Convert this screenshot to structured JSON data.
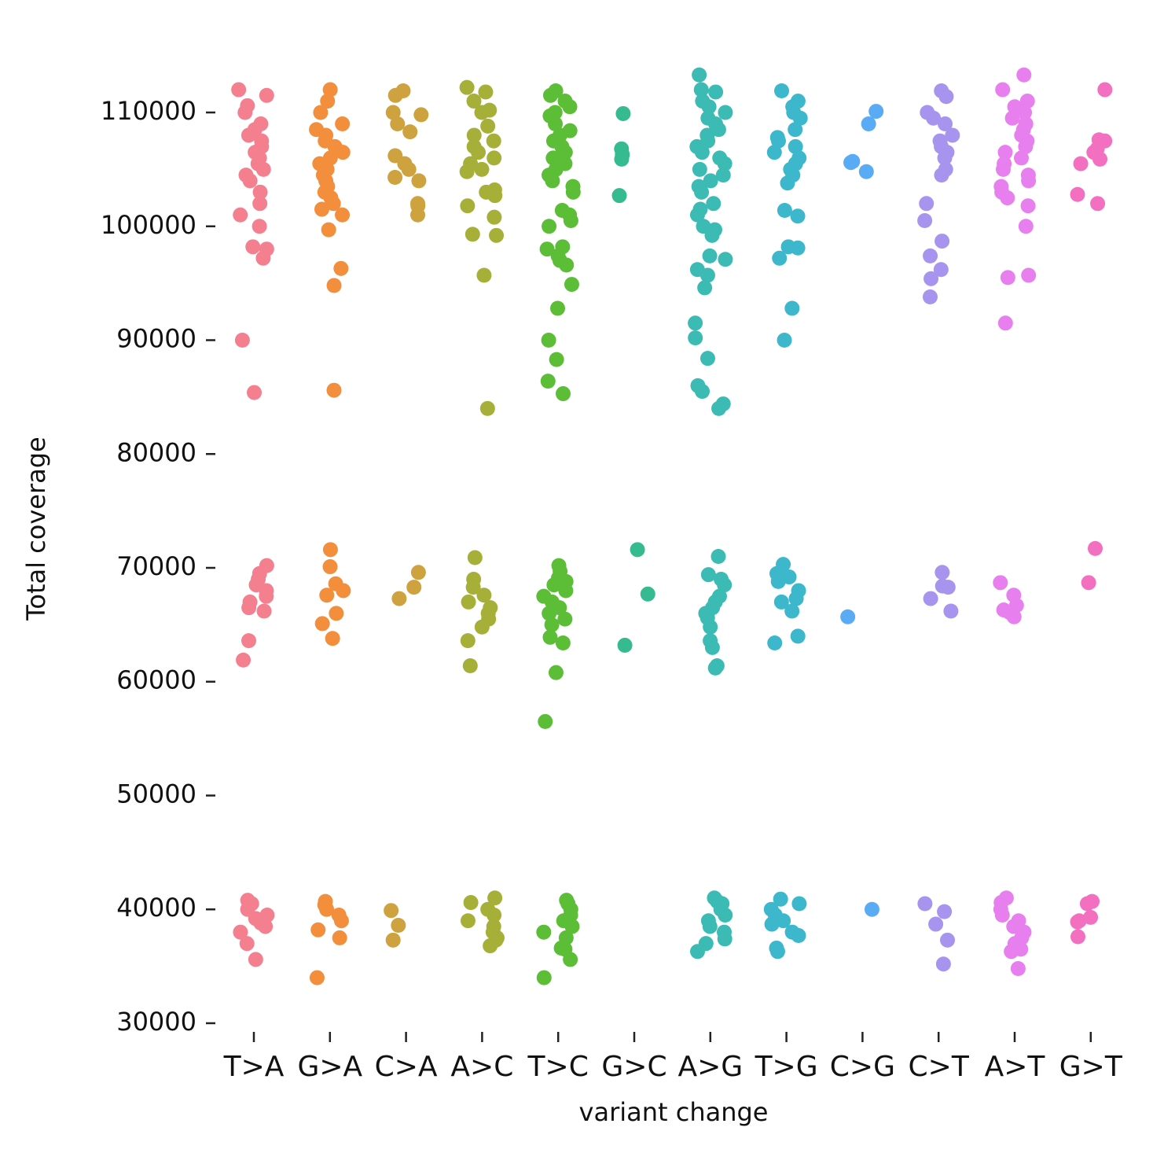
{
  "chart_data": {
    "type": "strip",
    "xlabel": "variant change",
    "ylabel": "Total coverage",
    "categories": [
      "T>A",
      "G>A",
      "C>A",
      "A>C",
      "T>C",
      "G>C",
      "A>G",
      "T>G",
      "C>G",
      "C>T",
      "A>T",
      "G>T"
    ],
    "colors": [
      "#f4808f",
      "#f28e3c",
      "#cda23f",
      "#a6af38",
      "#5cbd37",
      "#35bb8f",
      "#3bbbb4",
      "#3cb7cc",
      "#5aabf5",
      "#a794ef",
      "#e87fef",
      "#f370c0"
    ],
    "values": [
      [
        112000,
        111500,
        110600,
        110000,
        109000,
        108500,
        108000,
        107500,
        107000,
        106500,
        106000,
        105500,
        105000,
        104500,
        104000,
        103000,
        102000,
        101000,
        100000,
        98200,
        98000,
        97200,
        90000,
        85400,
        70200,
        69500,
        69000,
        68500,
        68000,
        67500,
        67000,
        66500,
        66200,
        63600,
        61900,
        40800,
        40500,
        40000,
        39500,
        39200,
        38800,
        38500,
        38000,
        37000,
        35600
      ],
      [
        112000,
        111000,
        110000,
        109000,
        108500,
        108000,
        107500,
        107000,
        106500,
        106000,
        105500,
        105000,
        104500,
        104000,
        103500,
        103000,
        102500,
        102000,
        101500,
        101000,
        99700,
        96300,
        94800,
        85600,
        71600,
        70100,
        68600,
        68000,
        67600,
        66000,
        65100,
        63800,
        40700,
        40400,
        40000,
        39500,
        39000,
        38200,
        37500,
        34000
      ],
      [
        111900,
        111500,
        110000,
        109800,
        109000,
        108300,
        106200,
        105500,
        105000,
        104300,
        104000,
        102000,
        101800,
        101000,
        69600,
        68300,
        67300,
        39900,
        38600,
        37300
      ],
      [
        112200,
        111800,
        111000,
        110200,
        110000,
        108800,
        108000,
        107500,
        107000,
        106500,
        106000,
        105500,
        105000,
        104800,
        103200,
        103000,
        102700,
        101800,
        100800,
        99300,
        99200,
        95700,
        84000,
        70900,
        69000,
        68300,
        67600,
        67000,
        66500,
        66000,
        65500,
        64800,
        63600,
        61400,
        41000,
        40600,
        40000,
        39500,
        39000,
        38500,
        38000,
        37500,
        37300,
        36800
      ],
      [
        111900,
        111500,
        111000,
        110500,
        110000,
        109700,
        109000,
        108400,
        108000,
        107500,
        107000,
        106500,
        106000,
        105500,
        105000,
        104500,
        104000,
        103500,
        103000,
        101400,
        101000,
        100500,
        100000,
        98200,
        98000,
        97400,
        97000,
        96600,
        94900,
        92800,
        90000,
        88300,
        86400,
        85300,
        70200,
        69700,
        69100,
        68800,
        68500,
        68000,
        67500,
        67000,
        66500,
        66000,
        65500,
        65000,
        63900,
        63400,
        60800,
        56500,
        40800,
        40500,
        40000,
        39500,
        39000,
        38500,
        38000,
        37500,
        36600,
        36500,
        35600,
        34000
      ],
      [
        109900,
        106800,
        106300,
        105900,
        102700,
        71600,
        67700,
        63200
      ],
      [
        113300,
        112000,
        111800,
        111000,
        110500,
        110000,
        109500,
        109000,
        108500,
        108000,
        107500,
        107000,
        106500,
        106000,
        105500,
        105000,
        104500,
        104000,
        103500,
        103000,
        102000,
        101500,
        101000,
        100000,
        99700,
        99200,
        97400,
        97100,
        96200,
        95700,
        94600,
        91500,
        90200,
        88400,
        86000,
        85500,
        84400,
        84000,
        71000,
        69400,
        69000,
        68500,
        67500,
        67000,
        66500,
        66000,
        65600,
        64800,
        63600,
        63000,
        61400,
        61200,
        41000,
        40700,
        40500,
        40000,
        39500,
        39000,
        38500,
        38000,
        37400,
        37000,
        36300
      ],
      [
        111900,
        111000,
        110500,
        110000,
        109500,
        108500,
        107800,
        107500,
        107000,
        106500,
        106000,
        105500,
        105000,
        104500,
        103800,
        101400,
        100900,
        98200,
        98100,
        97200,
        92800,
        90000,
        70300,
        69500,
        69200,
        68800,
        68000,
        67300,
        67000,
        66200,
        64000,
        63400,
        40900,
        40500,
        40000,
        39500,
        39000,
        38700,
        38000,
        37700,
        36600,
        36300
      ],
      [
        110100,
        109000,
        105700,
        105600,
        104800,
        65700,
        40000
      ],
      [
        111900,
        111400,
        110000,
        109500,
        109000,
        108000,
        107500,
        107000,
        106500,
        106000,
        105000,
        104500,
        102000,
        100500,
        98700,
        97400,
        96200,
        95400,
        93800,
        69600,
        68400,
        68300,
        67300,
        66200,
        40500,
        39800,
        38700,
        37300,
        35200
      ],
      [
        113300,
        112000,
        111000,
        110500,
        110000,
        109500,
        109000,
        108500,
        108000,
        107500,
        107000,
        106500,
        106000,
        105500,
        105000,
        104500,
        104000,
        103500,
        103000,
        102500,
        101800,
        100000,
        95700,
        95500,
        91500,
        68700,
        67600,
        66700,
        66300,
        66100,
        65700,
        41000,
        40600,
        40000,
        39500,
        39000,
        38500,
        38000,
        37500,
        37000,
        36500,
        36300,
        34800
      ],
      [
        112000,
        107600,
        107500,
        106800,
        106500,
        105900,
        105500,
        102800,
        102000,
        71700,
        68700,
        40700,
        40500,
        39300,
        39000,
        38900,
        37600
      ]
    ],
    "ylim": [
      28500,
      115500
    ],
    "yticks": [
      30000,
      40000,
      50000,
      60000,
      70000,
      80000,
      90000,
      100000,
      110000
    ]
  }
}
